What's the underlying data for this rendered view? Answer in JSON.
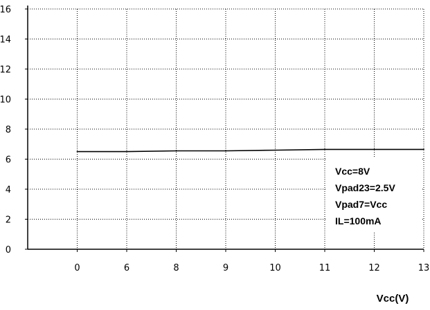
{
  "chart_data": {
    "type": "line",
    "title": "",
    "xlabel": "Vcc(V)",
    "ylabel": "",
    "x_tick_labels": [
      "0",
      "6",
      "8",
      "9",
      "10",
      "11",
      "12",
      "13"
    ],
    "y_ticks": [
      0,
      2,
      4,
      6,
      8,
      10,
      12,
      14,
      16
    ],
    "ylim": [
      0,
      16
    ],
    "grid": true,
    "legend": "none",
    "series": [
      {
        "values": [
          6.5,
          6.5,
          6.55,
          6.55,
          6.6,
          6.65,
          6.65,
          6.65
        ]
      }
    ],
    "annotations": [
      "Vcc=8V",
      "Vpad23=2.5V",
      "Vpad7=Vcc",
      "IL=100mA"
    ]
  },
  "colors": {
    "axis": "#000000",
    "grid": "#000000",
    "line": "#000000"
  }
}
